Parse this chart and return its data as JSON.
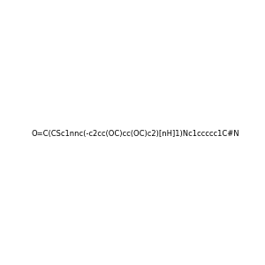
{
  "smiles": "O=C(CSc1nnc(-c2cc(OC)cc(OC)c2)[nH]1)Nc1ccccc1C#N",
  "image_size": 300,
  "background_color": "#f0f0f0"
}
